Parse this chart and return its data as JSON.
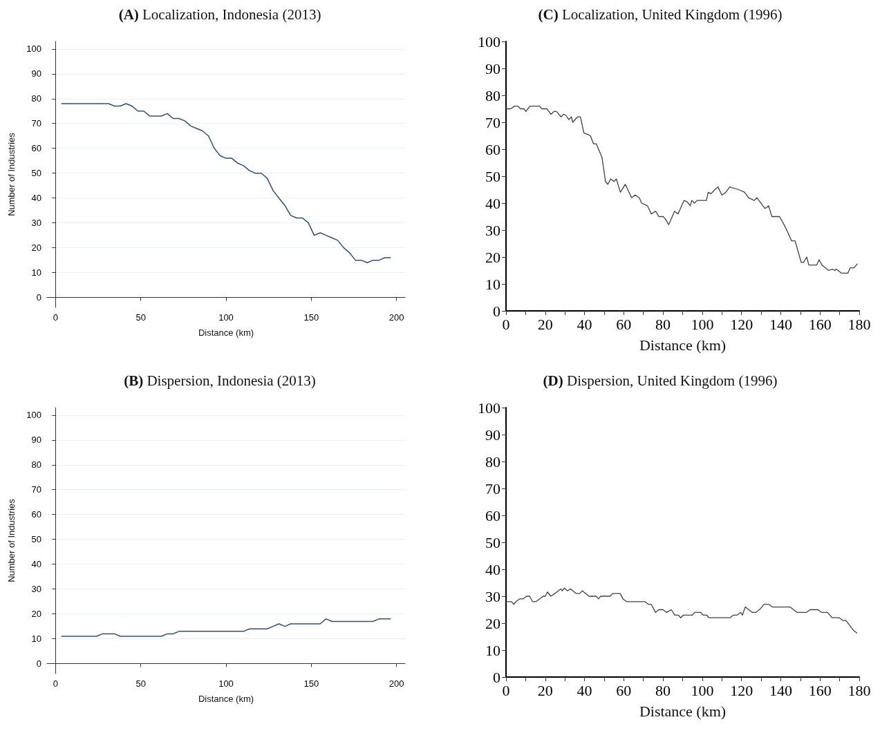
{
  "chart_data": [
    {
      "type": "line",
      "title": "(A) Localization, Indonesia (2013)",
      "xlabel": "Distance (km)",
      "ylabel": "Number of Industries",
      "xlim": [
        -5,
        205
      ],
      "ylim": [
        -4,
        103
      ],
      "xticks": [
        0,
        50,
        100,
        150,
        200
      ],
      "yticks": [
        0,
        10,
        20,
        30,
        40,
        50,
        60,
        70,
        80,
        90,
        100
      ],
      "grid": "y",
      "marker": "none",
      "line_style": "solid",
      "x": [
        3.4,
        6.9,
        10.3,
        13.8,
        17.2,
        20.7,
        24.1,
        27.6,
        31.0,
        34.5,
        37.9,
        41.4,
        44.8,
        48.3,
        51.7,
        55.2,
        58.6,
        62.1,
        65.5,
        69.0,
        72.4,
        75.9,
        79.3,
        82.8,
        86.2,
        89.7,
        93.1,
        96.6,
        100.0,
        103.4,
        106.9,
        110.3,
        113.8,
        117.2,
        120.7,
        124.1,
        127.6,
        131.0,
        134.5,
        137.9,
        141.4,
        144.8,
        148.3,
        151.7,
        155.2,
        158.6,
        162.1,
        165.5,
        169.0,
        172.4,
        175.9,
        179.3,
        182.8,
        186.2,
        189.7,
        193.1,
        196.6
      ],
      "series": [
        {
          "color": "#2c5177",
          "values": [
            78,
            78,
            78,
            78,
            78,
            78,
            78,
            78,
            78,
            77,
            77,
            78,
            77,
            75,
            75,
            73,
            73,
            73,
            74,
            72,
            72,
            71,
            69,
            68,
            67,
            65,
            60,
            57,
            56,
            56,
            54,
            53,
            51,
            50,
            50,
            48,
            43,
            40,
            37,
            33,
            32,
            32,
            30,
            25,
            26,
            25,
            24,
            23,
            20,
            18,
            15,
            15,
            14,
            15,
            15,
            16,
            16
          ]
        }
      ]
    },
    {
      "type": "line",
      "title": "(C) Localization, United Kingdom (1996)",
      "xlabel": "Distance (km)",
      "xlim": [
        0,
        180
      ],
      "ylim": [
        0,
        100
      ],
      "xticks": [
        0,
        {
          "value": 10,
          "label": null
        },
        20,
        {
          "value": 30,
          "label": null
        },
        40,
        {
          "value": 50,
          "label": null
        },
        60,
        {
          "value": 70,
          "label": null
        },
        80,
        {
          "value": 90,
          "label": null
        },
        100,
        {
          "value": 110,
          "label": null
        },
        120,
        {
          "value": 130,
          "label": null
        },
        140,
        {
          "value": 150,
          "label": null
        },
        160,
        {
          "value": 170,
          "label": null
        },
        180
      ],
      "yticks": [
        0,
        10,
        20,
        30,
        40,
        50,
        60,
        70,
        80,
        90,
        100
      ],
      "grid": false,
      "marker": "none",
      "line_style": "solid",
      "x": [
        0,
        2.4,
        4.3,
        6.1,
        7.3,
        9.2,
        10.1,
        12.2,
        17.1,
        18.3,
        20.8,
        22.9,
        24.4,
        25.7,
        28.1,
        29.3,
        30.6,
        32,
        33.3,
        34,
        36.4,
        37.9,
        39.7,
        41.6,
        43,
        44.6,
        46,
        48.9,
        50.7,
        51.9,
        53.4,
        55,
        56.2,
        58.3,
        60.8,
        64,
        65.8,
        67.9,
        69.1,
        72.1,
        74,
        76.2,
        77.9,
        80.1,
        81.3,
        82.9,
        85.9,
        87.6,
        88.9,
        90.7,
        92.3,
        93.9,
        94.7,
        96,
        97.4,
        102.1,
        103,
        104.5,
        106.4,
        108,
        110,
        112,
        114,
        118.6,
        121.6,
        123.5,
        126.5,
        127.8,
        132,
        133.8,
        135.5,
        139.4,
        142.4,
        145.5,
        147.3,
        150.4,
        151.6,
        153.2,
        154.3,
        158.3,
        159.5,
        161,
        164.4,
        166.3,
        167.5,
        168.3,
        171,
        174.2,
        175.4,
        177.3,
        179.1
      ],
      "series": [
        {
          "color": "#404040",
          "values": [
            75,
            75,
            76,
            76,
            75,
            75,
            74,
            76,
            76,
            75,
            75,
            73,
            74,
            74,
            72,
            73,
            72.5,
            71,
            72,
            70,
            72,
            72,
            66,
            65.5,
            65,
            62,
            62,
            57,
            48,
            47,
            49,
            48,
            49,
            44,
            47,
            42,
            43,
            42,
            40,
            39,
            36,
            37,
            35,
            35,
            34,
            32,
            37,
            36,
            38,
            41,
            40.5,
            39,
            41,
            40,
            41,
            41,
            44,
            43.5,
            45,
            46,
            43,
            44,
            46,
            45,
            44,
            42,
            41,
            42,
            38,
            39,
            35,
            35,
            31,
            26,
            26,
            18,
            18,
            20,
            17,
            17,
            19,
            17,
            15,
            15.5,
            15,
            15.5,
            14,
            14,
            16,
            16,
            17.5
          ]
        }
      ]
    },
    {
      "type": "line",
      "title": "(B) Dispersion, Indonesia (2013)",
      "xlabel": "Distance (km)",
      "ylabel": "Number of Industries",
      "xlim": [
        -5,
        205
      ],
      "ylim": [
        -4,
        103
      ],
      "xticks": [
        0,
        50,
        100,
        150,
        200
      ],
      "yticks": [
        0,
        10,
        20,
        30,
        40,
        50,
        60,
        70,
        80,
        90,
        100
      ],
      "grid": "y",
      "marker": "none",
      "line_style": "solid",
      "x": [
        3.4,
        6.9,
        10.3,
        13.8,
        17.2,
        20.7,
        24.1,
        27.6,
        31.0,
        34.5,
        37.9,
        41.4,
        44.8,
        48.3,
        51.7,
        55.2,
        58.6,
        62.1,
        65.5,
        69.0,
        72.4,
        75.9,
        79.3,
        82.8,
        86.2,
        89.7,
        93.1,
        96.6,
        100.0,
        103.4,
        106.9,
        110.3,
        113.8,
        117.2,
        120.7,
        124.1,
        127.6,
        131.0,
        134.5,
        137.9,
        141.4,
        144.8,
        148.3,
        151.7,
        155.2,
        158.6,
        162.1,
        165.5,
        169.0,
        172.4,
        175.9,
        179.3,
        182.8,
        186.2,
        189.7,
        193.1,
        196.6
      ],
      "series": [
        {
          "color": "#2c5177",
          "values": [
            11,
            11,
            11,
            11,
            11,
            11,
            11,
            12,
            12,
            12,
            11,
            11,
            11,
            11,
            11,
            11,
            11,
            11,
            12,
            12,
            13,
            13,
            13,
            13,
            13,
            13,
            13,
            13,
            13,
            13,
            13,
            13,
            14,
            14,
            14,
            14,
            15,
            16,
            15,
            16,
            16,
            16,
            16,
            16,
            16,
            18,
            17,
            17,
            17,
            17,
            17,
            17,
            17,
            17,
            18,
            18,
            18
          ]
        }
      ]
    },
    {
      "type": "line",
      "title": "(D) Dispersion, United Kingdom (1996)",
      "xlabel": "Distance (km)",
      "xlim": [
        0,
        180
      ],
      "ylim": [
        0,
        100
      ],
      "xticks": [
        0,
        {
          "value": 10,
          "label": null
        },
        20,
        {
          "value": 30,
          "label": null
        },
        40,
        {
          "value": 50,
          "label": null
        },
        60,
        {
          "value": 70,
          "label": null
        },
        80,
        {
          "value": 90,
          "label": null
        },
        100,
        {
          "value": 110,
          "label": null
        },
        120,
        {
          "value": 130,
          "label": null
        },
        140,
        {
          "value": 150,
          "label": null
        },
        160,
        {
          "value": 170,
          "label": null
        },
        180
      ],
      "yticks": [
        0,
        10,
        20,
        30,
        40,
        50,
        60,
        70,
        80,
        90,
        100
      ],
      "grid": false,
      "marker": "none",
      "line_style": "solid",
      "x": [
        0,
        2.8,
        3.9,
        5.1,
        6.9,
        8.7,
        10.5,
        12,
        13.5,
        15.3,
        17.1,
        18.9,
        20.1,
        21.1,
        22.8,
        24.9,
        27.9,
        28.7,
        29.7,
        31.3,
        32.9,
        35.7,
        37.5,
        38.9,
        42.3,
        45.9,
        47.1,
        48.3,
        53.1,
        54.3,
        58.2,
        59.6,
        61.4,
        70.7,
        72.6,
        74,
        76.2,
        77.8,
        80,
        81.8,
        84.2,
        86,
        87.8,
        89,
        90.4,
        95,
        96.2,
        99.2,
        100.4,
        102.2,
        103.4,
        114.1,
        115.9,
        117.7,
        119.5,
        120.5,
        121.9,
        123.7,
        125.5,
        127.3,
        129.7,
        131.5,
        133.9,
        135.7,
        144.7,
        148.3,
        153.1,
        154.9,
        159,
        160.8,
        163.8,
        166.2,
        169.8,
        171.6,
        173.2,
        177,
        178.9
      ],
      "series": [
        {
          "color": "#404040",
          "values": [
            28,
            28,
            27,
            28,
            29,
            29,
            30,
            30,
            28,
            28,
            29,
            30,
            30,
            31.6,
            30,
            31,
            32.7,
            32,
            33,
            32,
            32.7,
            31,
            31,
            32,
            30,
            30,
            29,
            30,
            30,
            31,
            31,
            29,
            28,
            28,
            27,
            27,
            24,
            25,
            25,
            24,
            25,
            23,
            23,
            22,
            23,
            23,
            24,
            24,
            23,
            23,
            22,
            22,
            23,
            23,
            24,
            23,
            26,
            25,
            24,
            24,
            25.4,
            27,
            27,
            26,
            26,
            24,
            24,
            25,
            25,
            24,
            24,
            22,
            22,
            21,
            21,
            17.4,
            16.3
          ]
        }
      ]
    }
  ]
}
